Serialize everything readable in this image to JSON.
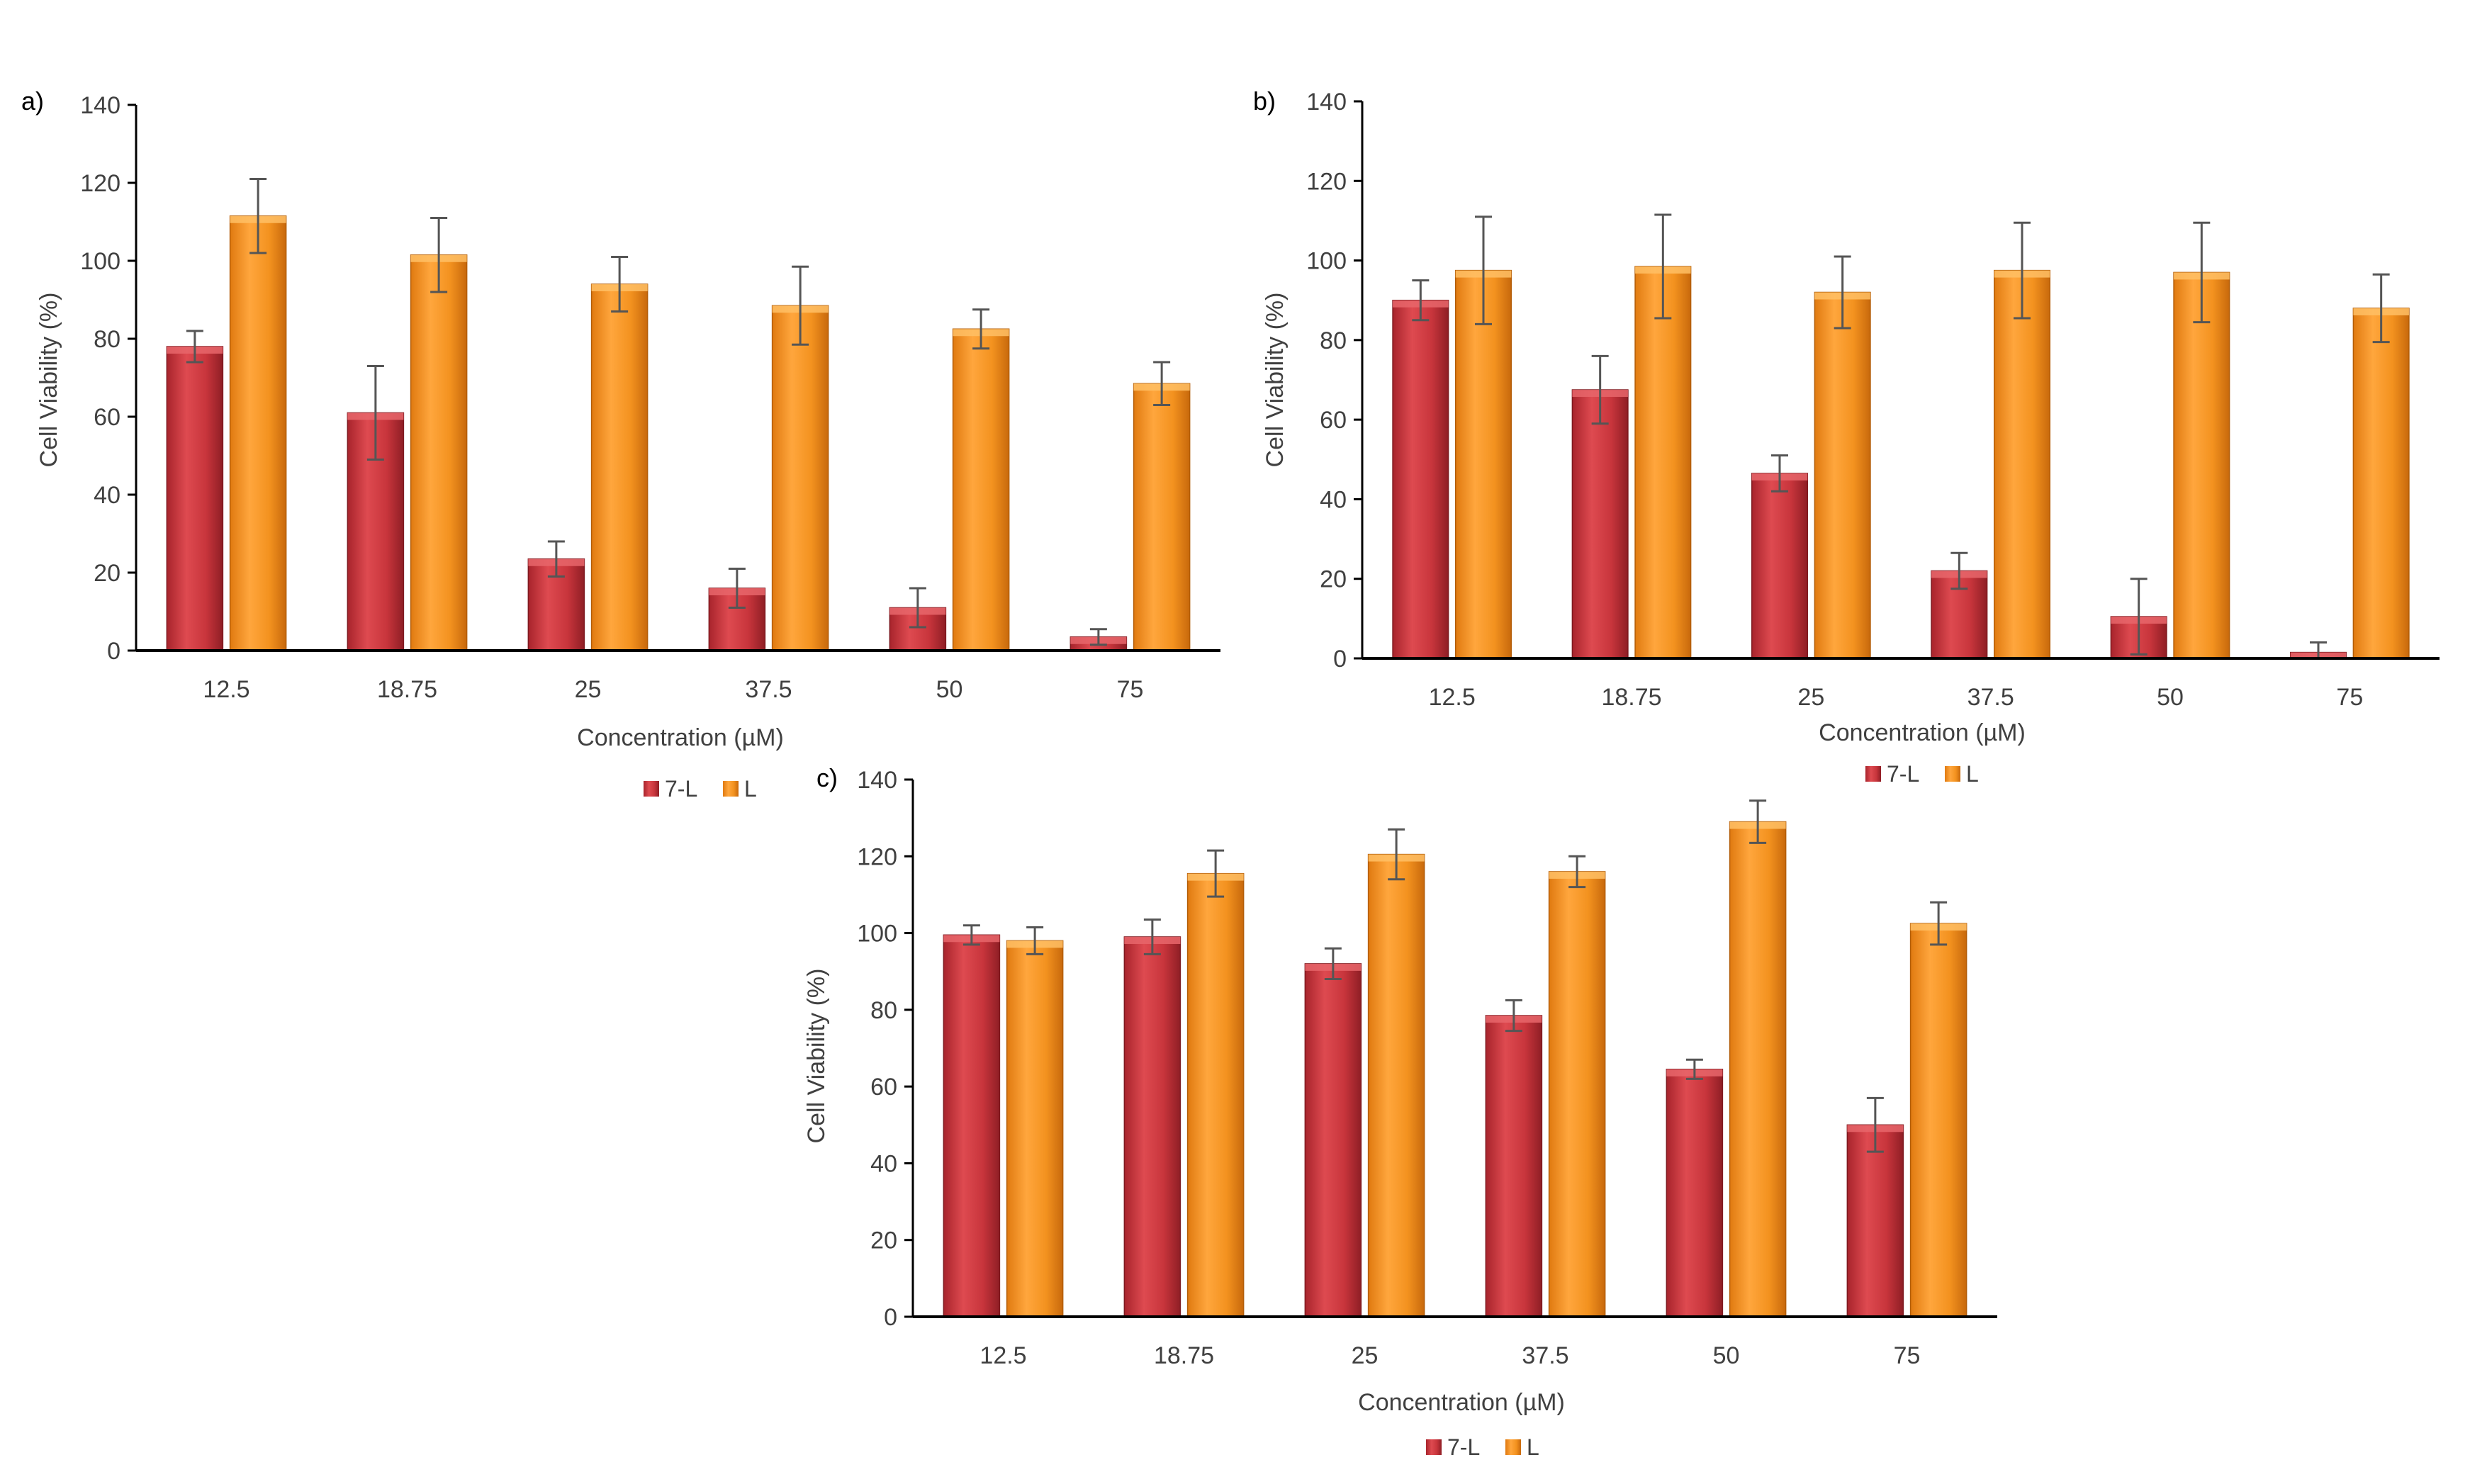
{
  "figure": {
    "colors": {
      "series_7L": "#c9353d",
      "series_L": "#f08c1e",
      "axis": "#000000",
      "text": "#404040",
      "errorbar": "#555555"
    }
  },
  "chart_data": [
    {
      "panel_label": "a)",
      "type": "bar",
      "title": "",
      "xlabel": "Concentration (µM)",
      "ylabel": "Cell Viability (%)",
      "ylim": [
        0,
        140
      ],
      "yticks": [
        0,
        20,
        40,
        60,
        80,
        100,
        120,
        140
      ],
      "grid": false,
      "legend": "bottom",
      "categories": [
        "12.5",
        "18.75",
        "25",
        "37.5",
        "50",
        "75"
      ],
      "series": [
        {
          "name": "7-L",
          "values": [
            78,
            61,
            23.5,
            16,
            11,
            3.5
          ],
          "errors": [
            4,
            12,
            4.5,
            5,
            5,
            2
          ]
        },
        {
          "name": "L",
          "values": [
            111.5,
            101.5,
            94,
            88.5,
            82.5,
            68.5
          ],
          "errors": [
            9.5,
            9.5,
            7,
            10,
            5,
            5.5
          ]
        }
      ]
    },
    {
      "panel_label": "b)",
      "type": "bar",
      "title": "",
      "xlabel": "Concentration (µM)",
      "ylabel": "Cell Viability (%)",
      "ylim": [
        0,
        140
      ],
      "yticks": [
        0,
        20,
        40,
        60,
        80,
        100,
        120,
        140
      ],
      "grid": false,
      "legend": "bottom",
      "categories": [
        "12.5",
        "18.75",
        "25",
        "37.5",
        "50",
        "75"
      ],
      "series": [
        {
          "name": "7-L",
          "values": [
            90,
            67.5,
            46.5,
            22,
            10.5,
            1.5
          ],
          "errors": [
            5,
            8.5,
            4.5,
            4.5,
            9.5,
            2.5
          ]
        },
        {
          "name": "L",
          "values": [
            97.5,
            98.5,
            92,
            97.5,
            97,
            88
          ],
          "errors": [
            13.5,
            13,
            9,
            12,
            12.5,
            8.5
          ]
        }
      ]
    },
    {
      "panel_label": "c)",
      "type": "bar",
      "title": "",
      "xlabel": "Concentration (µM)",
      "ylabel": "Cell Viability (%)",
      "ylim": [
        0,
        140
      ],
      "yticks": [
        0,
        20,
        40,
        60,
        80,
        100,
        120,
        140
      ],
      "grid": false,
      "legend": "bottom",
      "categories": [
        "12.5",
        "18.75",
        "25",
        "37.5",
        "50",
        "75"
      ],
      "series": [
        {
          "name": "7-L",
          "values": [
            99.5,
            99,
            92,
            78.5,
            64.5,
            50
          ],
          "errors": [
            2.5,
            4.5,
            4,
            4,
            2.5,
            7
          ]
        },
        {
          "name": "L",
          "values": [
            98,
            115.5,
            120.5,
            116,
            129,
            102.5
          ],
          "errors": [
            3.5,
            6,
            6.5,
            4,
            5.5,
            5.5
          ]
        }
      ]
    }
  ]
}
